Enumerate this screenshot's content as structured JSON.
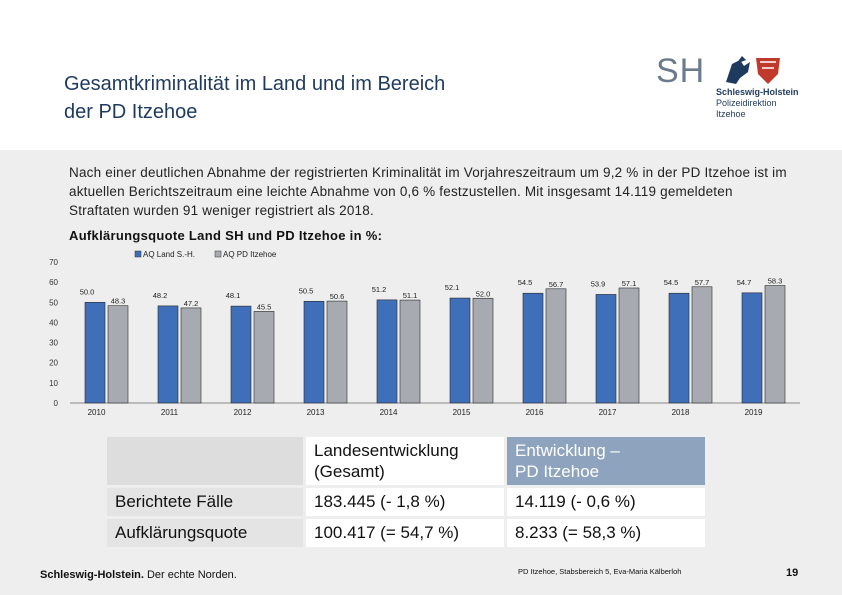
{
  "slide": {
    "title_line1": "Gesamtkriminalität im Land und im Bereich",
    "title_line2": "der PD Itzehoe",
    "intro": "Nach einer deutlichen Abnahme der registrierten Kriminalität im Vorjahreszeitraum um 9,2 % in der PD Itzehoe ist im aktuellen Berichtszeitraum eine leichte Abnahme von 0,6 % festzustellen. Mit insgesamt 14.119 gemeldeten Straftaten wurden 91 weniger registriert als 2018.",
    "chart_heading": "Aufklärungsquote Land SH und PD Itzehoe in %:"
  },
  "logo": {
    "mark": "SH",
    "line1": "Schleswig-Holstein",
    "line2": "Polizeidirektion",
    "line3": "Itzehoe"
  },
  "chart_data": {
    "type": "bar",
    "categories": [
      "2010",
      "2011",
      "2012",
      "2013",
      "2014",
      "2015",
      "2016",
      "2017",
      "2018",
      "2019"
    ],
    "series": [
      {
        "name": "AQ Land S.-H.",
        "values": [
          50.0,
          48.2,
          48.1,
          50.5,
          51.2,
          52.1,
          54.5,
          53.9,
          54.5,
          54.7
        ],
        "labels": [
          "50.0",
          "48.2",
          "48.1",
          "50.5",
          "51.2",
          "52.1",
          "54.5",
          "53.9",
          "54.5",
          "54.7"
        ],
        "color": "#3e6fb8"
      },
      {
        "name": "AQ PD Itzehoe",
        "values": [
          48.3,
          47.2,
          45.5,
          50.6,
          51.1,
          52.0,
          56.7,
          57.1,
          57.7,
          58.3
        ],
        "labels": [
          "48.3",
          "47.2",
          "45.5",
          "50.6",
          "51.1",
          "52.0",
          "56.7",
          "57.1",
          "57.7",
          "58.3"
        ],
        "color": "#a7abb1"
      }
    ],
    "ylim": [
      0,
      70
    ],
    "yticks": [
      "0",
      "10",
      "20",
      "30",
      "40",
      "50",
      "60",
      "70"
    ],
    "legend_position": "top-left"
  },
  "table": {
    "header_national": "Landesentwicklung (Gesamt)",
    "header_national_line1": "Landesentwicklung",
    "header_national_line2": "(Gesamt)",
    "header_local_line1": "Entwicklung –",
    "header_local_line2": "PD Itzehoe",
    "rows": [
      {
        "label": "Berichtete Fälle",
        "national": "183.445  (- 1,8 %)",
        "local": "14.119 (- 0,6 %)"
      },
      {
        "label": "Aufklärungsquote",
        "national": "100.417  (= 54,7 %)",
        "local": "8.233  (= 58,3 %)"
      }
    ]
  },
  "footer": {
    "brand": "Schleswig-Holstein.",
    "slogan": " Der echte Norden.",
    "source": "PD Itzehoe, Stabsbereich 5, Eva-Maria Kälberloh",
    "page": "19"
  }
}
